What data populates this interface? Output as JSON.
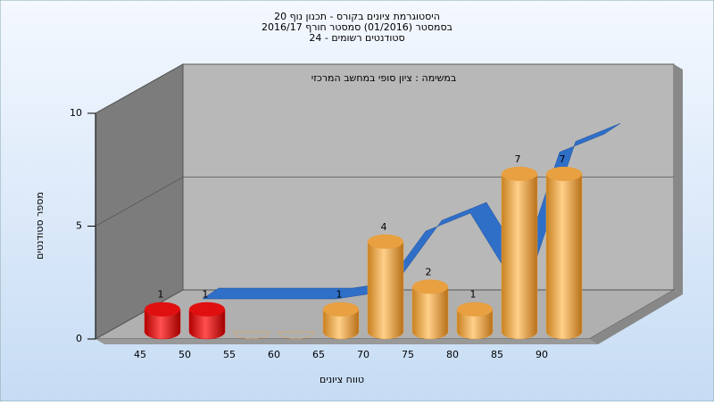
{
  "chart_data": {
    "type": "bar",
    "title": [
      "היסטוגרמת ציונים בקורס - תכנון נוף 20",
      "בסמסטר  (01/2016)  סמסטר חורף 2016/17",
      "סטודנטים רשומים - 24"
    ],
    "annotation": "במשימה : ציון סופי במחשב המרכזי",
    "x_label": "טווח ציונים",
    "y_label": "מספר סטודנטים",
    "categories": [
      "45",
      "50",
      "55",
      "60",
      "65",
      "70",
      "75",
      "80",
      "85",
      "90"
    ],
    "series": [
      {
        "type": "bar",
        "colors": [
          "#e01010",
          "#e01010",
          "#e8a040",
          "#e8a040",
          "#e8a040",
          "#e8a040",
          "#e8a040",
          "#e8a040",
          "#e8a040",
          "#e8a040"
        ],
        "values": [
          1,
          1,
          0,
          0,
          1,
          4,
          2,
          1,
          7,
          7
        ]
      },
      {
        "type": "line",
        "color": "#2f6fc8",
        "values": [
          0,
          0,
          0,
          0,
          0.3,
          3,
          3.8,
          0.6,
          6.5,
          7.3
        ]
      }
    ],
    "ylim": [
      0,
      10
    ],
    "yticks": [
      0,
      5,
      10
    ]
  }
}
